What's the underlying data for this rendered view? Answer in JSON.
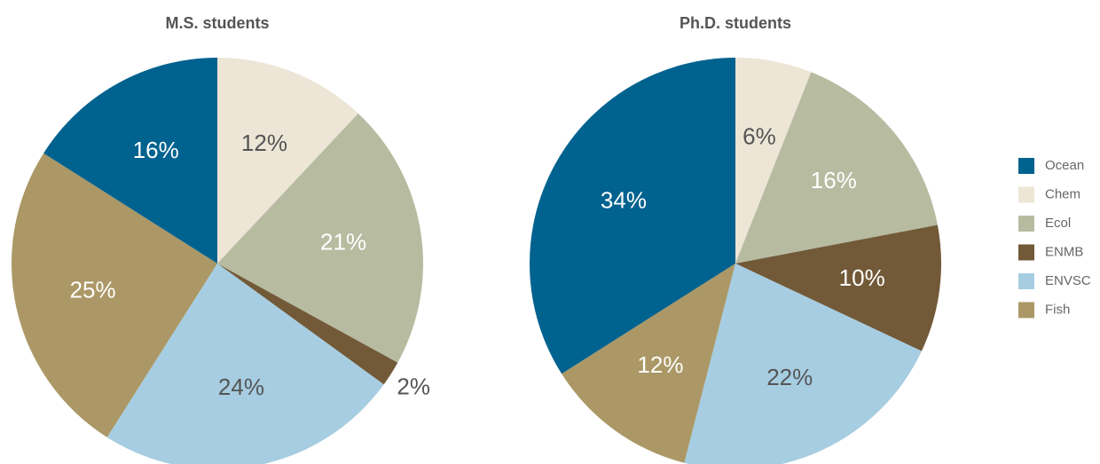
{
  "chart_data": [
    {
      "type": "pie",
      "title": "M.S. students",
      "categories": [
        "Chem",
        "Ecol",
        "ENMB",
        "ENVSC",
        "Fish",
        "Ocean"
      ],
      "values": [
        12,
        21,
        2,
        24,
        25,
        16
      ],
      "value_labels": [
        "12%",
        "21%",
        "2%",
        "24%",
        "25%",
        "16%"
      ],
      "colors": [
        "#ede5d6",
        "#b7bca1",
        "#725a39",
        "#a6cde1",
        "#ab9866",
        "#00628f"
      ]
    },
    {
      "type": "pie",
      "title": "Ph.D. students",
      "categories": [
        "Chem",
        "Ecol",
        "ENMB",
        "ENVSC",
        "Fish",
        "Ocean"
      ],
      "values": [
        6,
        16,
        10,
        22,
        12,
        34
      ],
      "value_labels": [
        "6%",
        "16%",
        "10%",
        "22%",
        "12%",
        "34%"
      ],
      "colors": [
        "#ede5d6",
        "#b7bca1",
        "#725a39",
        "#a6cde1",
        "#ab9866",
        "#00628f"
      ]
    }
  ],
  "legend": {
    "items": [
      {
        "name": "Ocean",
        "color": "#00628f"
      },
      {
        "name": "Chem",
        "color": "#ede5d6"
      },
      {
        "name": "Ecol",
        "color": "#b7bca1"
      },
      {
        "name": "ENMB",
        "color": "#725a39"
      },
      {
        "name": "ENVSC",
        "color": "#a6cde1"
      },
      {
        "name": "Fish",
        "color": "#ab9866"
      }
    ],
    "position": "right"
  }
}
